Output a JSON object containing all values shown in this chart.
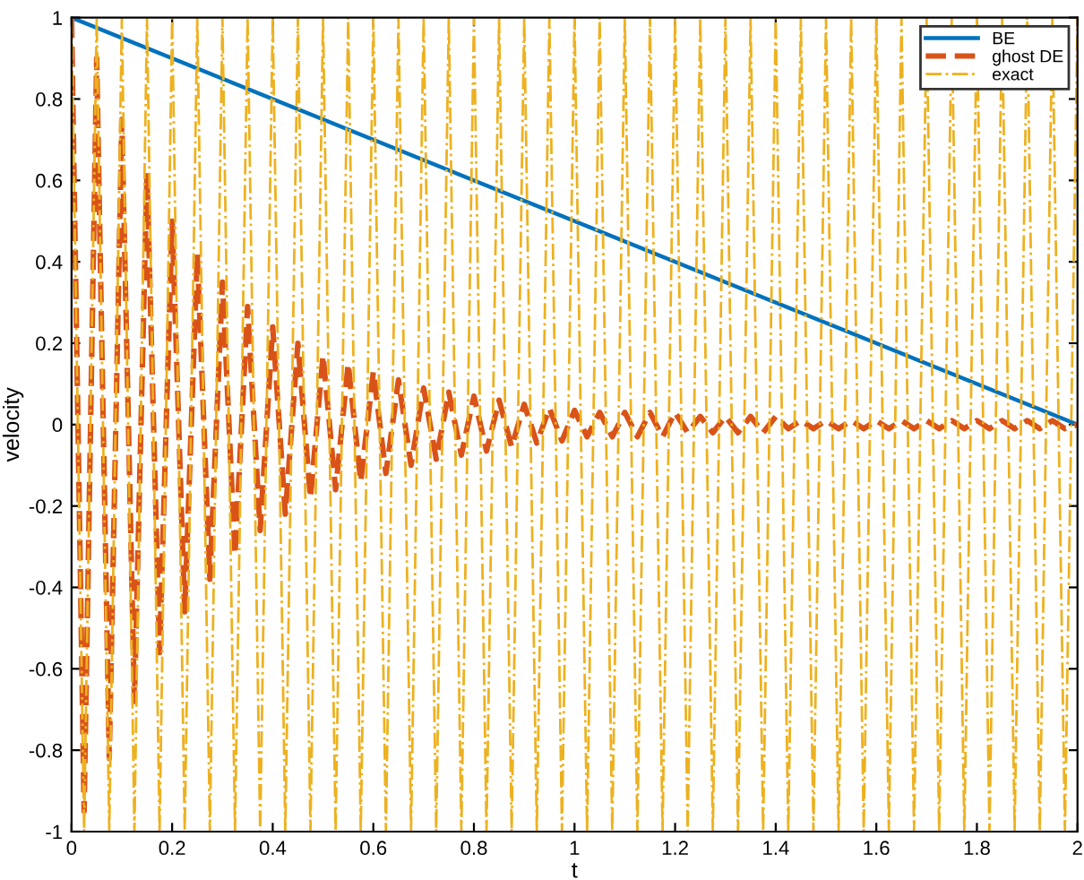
{
  "chart_data": {
    "type": "line",
    "xlabel": "t",
    "ylabel": "velocity",
    "x": [
      0,
      0.025,
      0.05,
      0.075,
      0.1,
      0.125,
      0.15,
      0.175,
      0.2,
      0.225,
      0.25,
      0.275,
      0.3,
      0.325,
      0.35,
      0.375,
      0.4,
      0.425,
      0.45,
      0.475,
      0.5,
      0.525,
      0.55,
      0.575,
      0.6,
      0.625,
      0.65,
      0.675,
      0.7,
      0.725,
      0.75,
      0.775,
      0.8,
      0.825,
      0.85,
      0.875,
      0.9,
      0.925,
      0.95,
      0.975,
      1,
      1.025,
      1.05,
      1.075,
      1.1,
      1.125,
      1.15,
      1.175,
      1.2,
      1.225,
      1.25,
      1.275,
      1.3,
      1.325,
      1.35,
      1.375,
      1.4,
      1.425,
      1.45,
      1.475,
      1.5,
      1.525,
      1.55,
      1.575,
      1.6,
      1.625,
      1.65,
      1.675,
      1.7,
      1.725,
      1.75,
      1.775,
      1.8,
      1.825,
      1.85,
      1.875,
      1.9,
      1.925,
      1.95,
      1.975,
      2
    ],
    "series": [
      {
        "name": "BE",
        "color": "#0072bd",
        "line_style": "solid",
        "x": [
          0,
          2
        ],
        "values": [
          1,
          0
        ]
      },
      {
        "name": "ghost DE",
        "color": "#d95319",
        "line_style": "dashed",
        "values": [
          1,
          -0.95,
          0.9,
          -0.82,
          0.75,
          -0.68,
          0.62,
          -0.56,
          0.5,
          -0.46,
          0.42,
          -0.38,
          0.35,
          -0.32,
          0.29,
          -0.26,
          0.24,
          -0.22,
          0.2,
          -0.18,
          0.17,
          -0.16,
          0.15,
          -0.14,
          0.13,
          -0.12,
          0.11,
          -0.1,
          0.09,
          -0.085,
          0.08,
          -0.075,
          0.07,
          -0.065,
          0.06,
          -0.055,
          0.05,
          -0.045,
          0.04,
          -0.04,
          0.035,
          -0.03,
          0.03,
          -0.03,
          0.03,
          -0.03,
          0.03,
          -0.03,
          0.03,
          -0.02,
          0.02,
          -0.02,
          0.02,
          -0.02,
          0.02,
          -0.02,
          0.02,
          -0.01,
          0.01,
          -0.01,
          0.01,
          -0.01,
          0.01,
          -0.01,
          0.01,
          -0.01,
          0.01,
          -0.01,
          0.01,
          -0.01,
          0.01,
          -0.01,
          0.01,
          -0.01,
          0.01,
          -0.01,
          0.01,
          -0.01,
          0.01,
          -0.01,
          0
        ]
      },
      {
        "name": "exact",
        "color": "#edb120",
        "line_style": "dashdot",
        "values": [
          1,
          -1,
          1,
          -1,
          1,
          -1,
          1,
          -1,
          1,
          -1,
          1,
          -1,
          1,
          -1,
          1,
          -1,
          1,
          -1,
          1,
          -1,
          1,
          -1,
          1,
          -1,
          1,
          -1,
          1,
          -1,
          1,
          -1,
          1,
          -1,
          1,
          -1,
          1,
          -1,
          1,
          -1,
          1,
          -1,
          1,
          -1,
          1,
          -1,
          1,
          -1,
          1,
          -1,
          1,
          -1,
          1,
          -1,
          1,
          -1,
          1,
          -1,
          1,
          -1,
          1,
          -1,
          1,
          -1,
          1,
          -1,
          1,
          -1,
          1,
          -1,
          1,
          -1,
          1,
          -1,
          1,
          -1,
          1,
          -1,
          1,
          -1,
          1,
          -1,
          1
        ]
      }
    ],
    "xlim": [
      0,
      2
    ],
    "xticks": [
      0,
      0.2,
      0.4,
      0.6,
      0.8,
      1,
      1.2,
      1.4,
      1.6,
      1.8,
      2
    ],
    "ylim": [
      -1,
      1
    ],
    "yticks": [
      -1,
      -0.8,
      -0.6,
      -0.4,
      -0.2,
      0,
      0.2,
      0.4,
      0.6,
      0.8,
      1
    ],
    "grid": false,
    "legend": "top right",
    "marker": "none"
  }
}
